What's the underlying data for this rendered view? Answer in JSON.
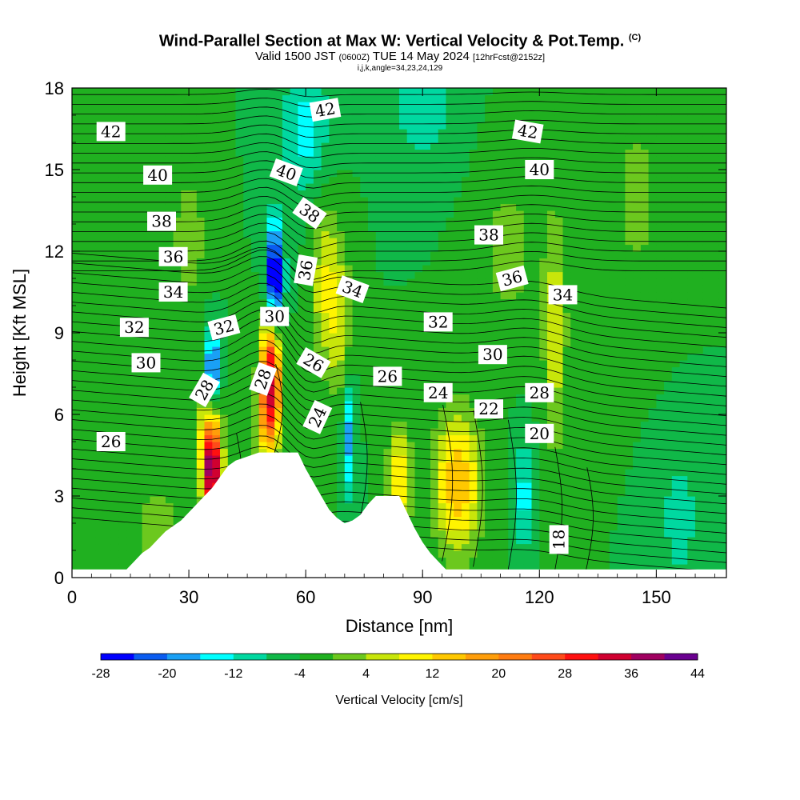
{
  "title": {
    "main": "Wind-Parallel Section at Max W: Vertical Velocity & Pot.Temp.",
    "main_mark": "(C)",
    "valid_prefix": "Valid 1500 JST",
    "valid_utc": "(0600Z)",
    "valid_date": "TUE 14 May 2024",
    "forecast_tag": "[12hrFcst@2152z]",
    "ijk": "i,j,k,angle=34,23,24,129"
  },
  "chart_data": {
    "type": "heatmap",
    "xlabel": "Distance [nm]",
    "ylabel": "Height [Kft MSL]",
    "xlim": [
      0,
      168
    ],
    "ylim": [
      0,
      18
    ],
    "x_ticks": [
      0,
      30,
      60,
      90,
      120,
      150
    ],
    "y_ticks": [
      0,
      3,
      6,
      9,
      12,
      15,
      18
    ],
    "colorbar": {
      "title": "Vertical Velocity [cm/s]",
      "levels": [
        -28,
        -24,
        -20,
        -16,
        -12,
        -8,
        -4,
        0,
        4,
        8,
        12,
        16,
        20,
        24,
        28,
        32,
        36,
        40,
        44
      ],
      "tick_labels": [
        -28,
        -20,
        -12,
        -4,
        4,
        12,
        20,
        28,
        36,
        44
      ],
      "colors": [
        "#0000ff",
        "#0a5cf0",
        "#1aa0f5",
        "#00ffff",
        "#00d8a0",
        "#10b848",
        "#20b020",
        "#6cc81e",
        "#c8e60a",
        "#fff400",
        "#ffc800",
        "#ff9e0a",
        "#ff7c10",
        "#ff4a1a",
        "#ff1010",
        "#d00030",
        "#a00060",
        "#6a0090"
      ]
    },
    "theta_contour_labels": [
      {
        "value": 42,
        "x": 10,
        "y": 16.4
      },
      {
        "value": 42,
        "x": 65,
        "y": 17.2
      },
      {
        "value": 42,
        "x": 117,
        "y": 16.4
      },
      {
        "value": 40,
        "x": 22,
        "y": 14.8
      },
      {
        "value": 40,
        "x": 55,
        "y": 14.9
      },
      {
        "value": 40,
        "x": 120,
        "y": 15.0
      },
      {
        "value": 38,
        "x": 23,
        "y": 13.1
      },
      {
        "value": 38,
        "x": 61,
        "y": 13.4
      },
      {
        "value": 38,
        "x": 107,
        "y": 12.6
      },
      {
        "value": 36,
        "x": 26,
        "y": 11.8
      },
      {
        "value": 36,
        "x": 60,
        "y": 11.3
      },
      {
        "value": 36,
        "x": 113,
        "y": 11.0
      },
      {
        "value": 34,
        "x": 26,
        "y": 10.5
      },
      {
        "value": 34,
        "x": 72,
        "y": 10.6
      },
      {
        "value": 34,
        "x": 126,
        "y": 10.4
      },
      {
        "value": 32,
        "x": 16,
        "y": 9.2
      },
      {
        "value": 32,
        "x": 39,
        "y": 9.2
      },
      {
        "value": 32,
        "x": 94,
        "y": 9.4
      },
      {
        "value": 30,
        "x": 19,
        "y": 7.9
      },
      {
        "value": 30,
        "x": 52,
        "y": 9.6
      },
      {
        "value": 30,
        "x": 108,
        "y": 8.2
      },
      {
        "value": 28,
        "x": 34,
        "y": 6.9
      },
      {
        "value": 28,
        "x": 49,
        "y": 7.3
      },
      {
        "value": 28,
        "x": 120,
        "y": 6.8
      },
      {
        "value": 26,
        "x": 10,
        "y": 5.0
      },
      {
        "value": 26,
        "x": 62,
        "y": 7.9
      },
      {
        "value": 26,
        "x": 81,
        "y": 7.4
      },
      {
        "value": 24,
        "x": 94,
        "y": 6.8
      },
      {
        "value": 24,
        "x": 63,
        "y": 5.9
      },
      {
        "value": 22,
        "x": 107,
        "y": 6.2
      },
      {
        "value": 20,
        "x": 120,
        "y": 5.3
      },
      {
        "value": 18,
        "x": 125,
        "y": 1.4
      }
    ]
  }
}
